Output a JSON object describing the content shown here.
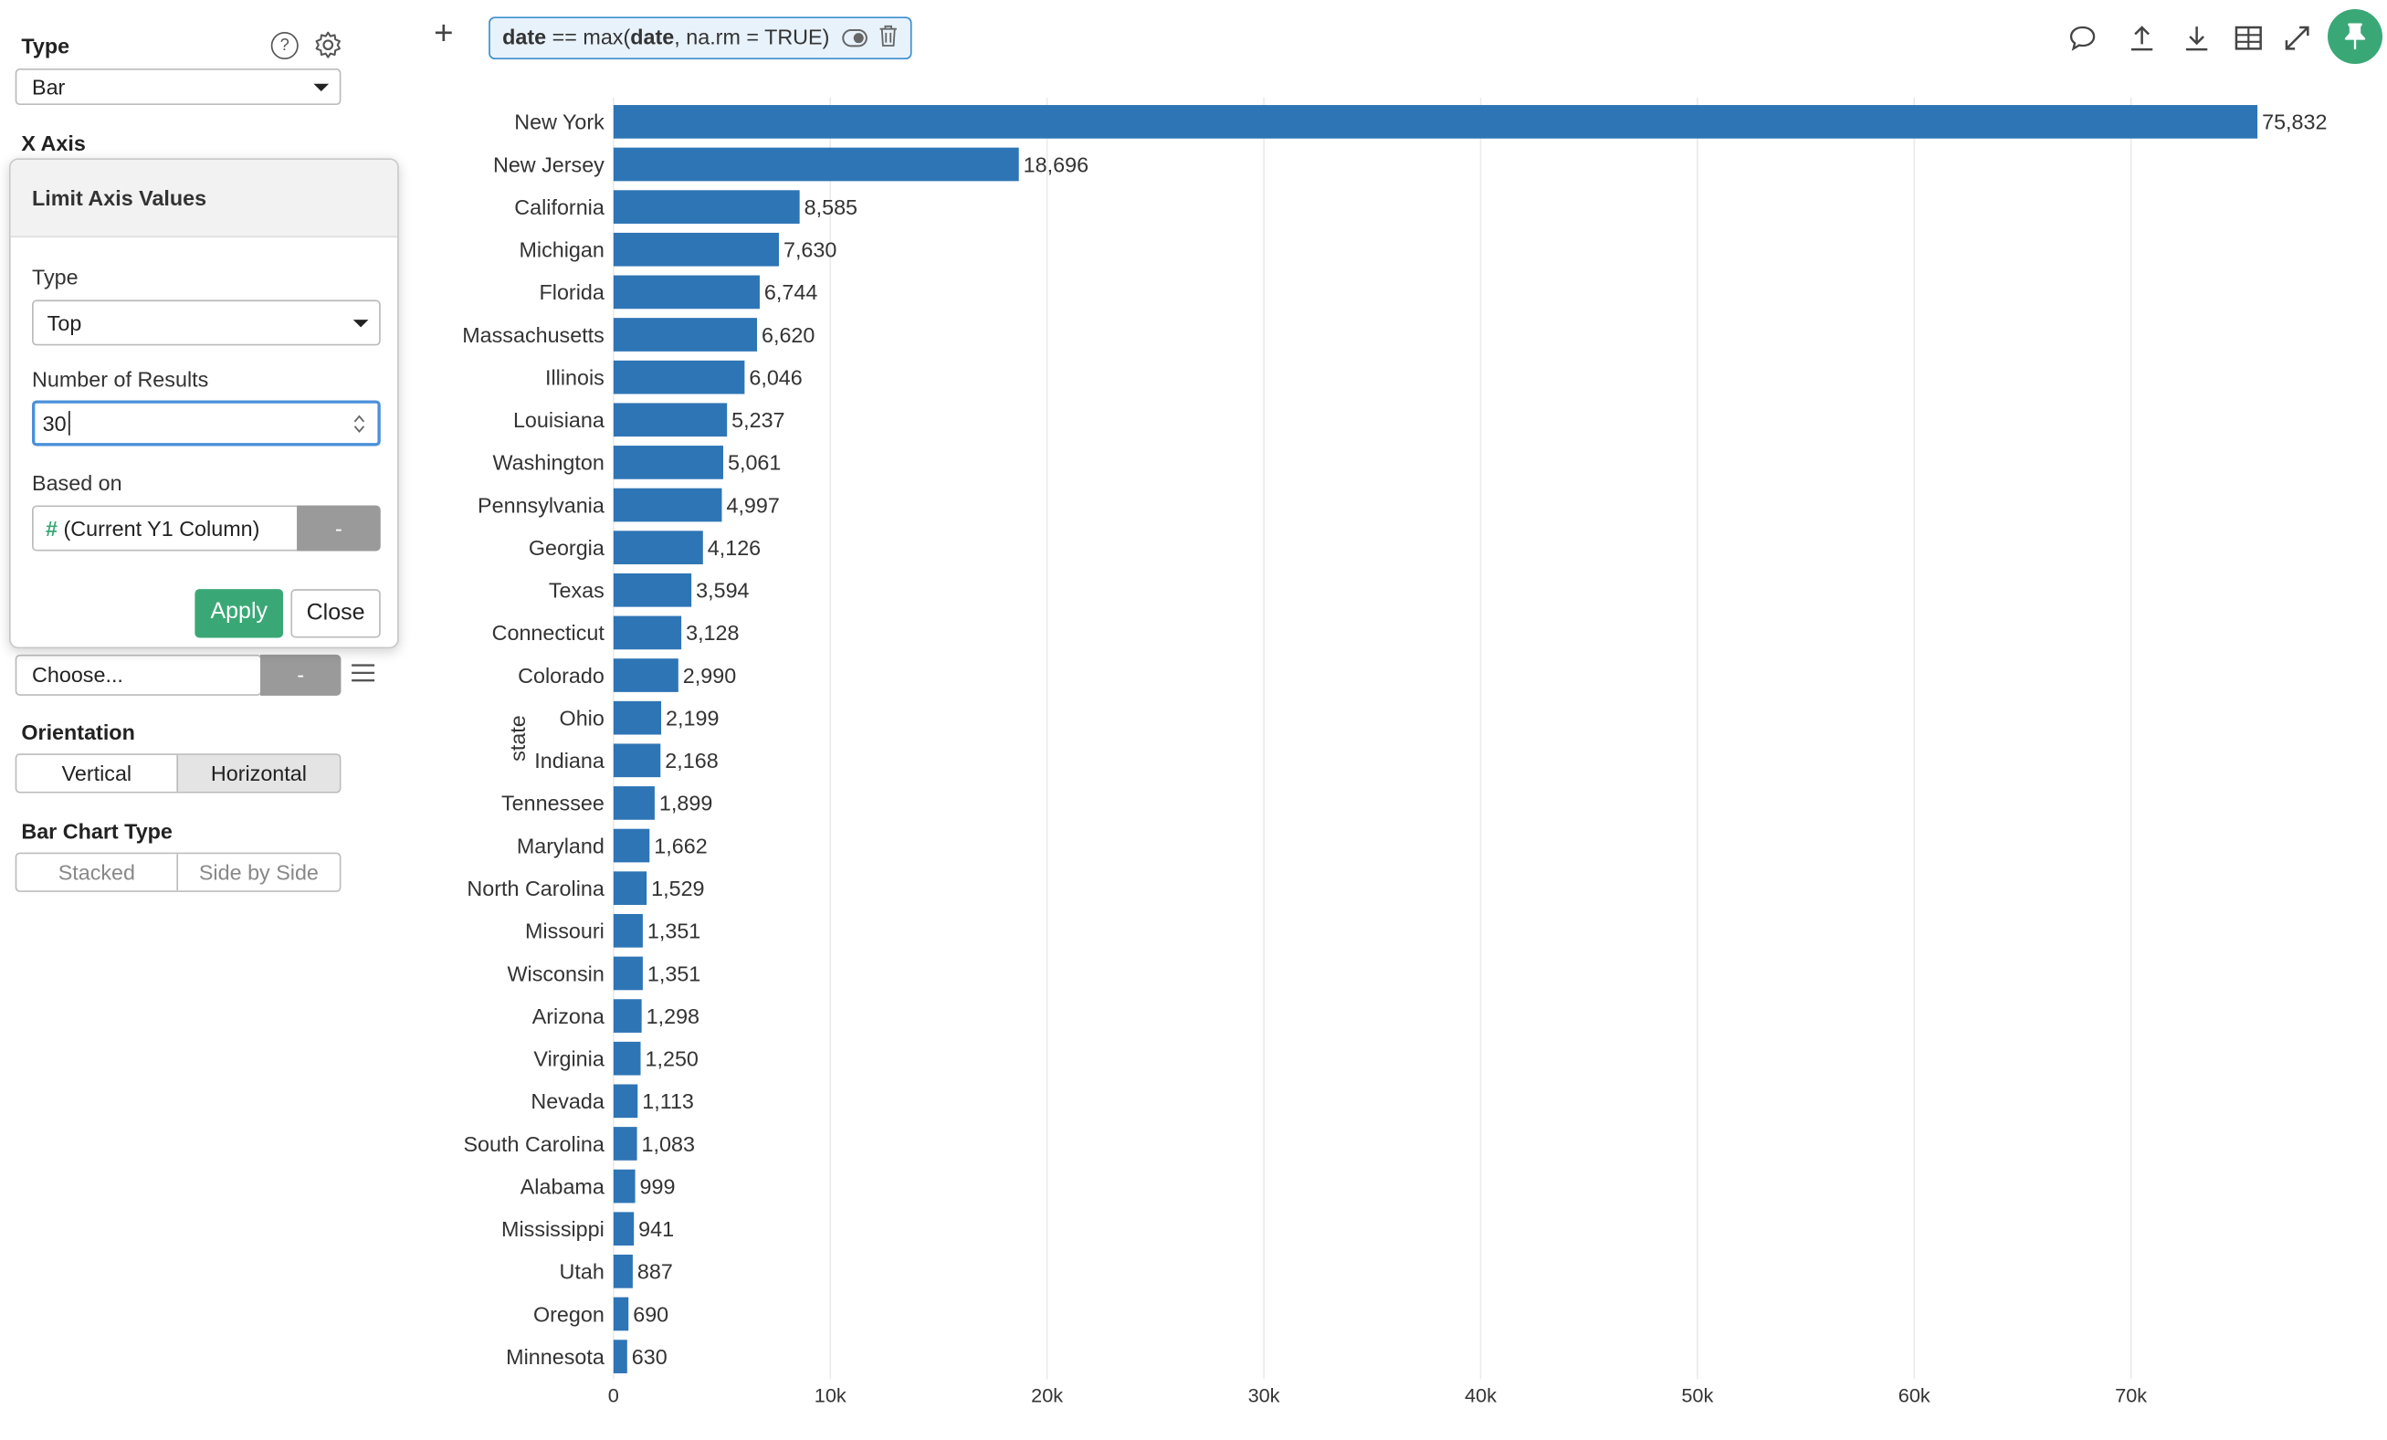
{
  "sidebar": {
    "type_label": "Type",
    "type_value": "Bar",
    "x_axis_label": "X Axis",
    "choose_placeholder": "Choose...",
    "choose_dash": "-",
    "orientation_label": "Orientation",
    "orientation_options": [
      "Vertical",
      "Horizontal"
    ],
    "orientation_selected": "Horizontal",
    "bar_chart_type_label": "Bar Chart Type",
    "bar_chart_type_options": [
      "Stacked",
      "Side by Side"
    ]
  },
  "popover": {
    "title": "Limit Axis Values",
    "type_label": "Type",
    "type_value": "Top",
    "number_label": "Number of Results",
    "number_value": "30",
    "based_on_label": "Based on",
    "based_on_hash": "#",
    "based_on_value": "(Current Y1 Column)",
    "based_on_dash": "-",
    "apply": "Apply",
    "close": "Close"
  },
  "filter": {
    "col": "date",
    "op": " == max(",
    "arg": "date",
    "rest": ", na.rm = TRUE)"
  },
  "toolbar": {
    "add": "+",
    "icons": [
      "comment-icon",
      "upload-icon",
      "download-icon",
      "table-icon",
      "expand-icon",
      "pin-icon"
    ]
  },
  "colors": {
    "bar": "#2e75b5",
    "apply": "#3aa876",
    "pin": "#3aa876",
    "filter_border": "#3b8fd0"
  },
  "chart_data": {
    "type": "bar",
    "orientation": "horizontal",
    "ylabel": "state",
    "xlim": [
      0,
      79000
    ],
    "x_ticks": [
      0,
      10000,
      20000,
      30000,
      40000,
      50000,
      60000,
      70000
    ],
    "x_tick_labels": [
      "0",
      "10k",
      "20k",
      "30k",
      "40k",
      "50k",
      "60k",
      "70k"
    ],
    "grid": true,
    "categories": [
      "New York",
      "New Jersey",
      "California",
      "Michigan",
      "Florida",
      "Massachusetts",
      "Illinois",
      "Louisiana",
      "Washington",
      "Pennsylvania",
      "Georgia",
      "Texas",
      "Connecticut",
      "Colorado",
      "Ohio",
      "Indiana",
      "Tennessee",
      "Maryland",
      "North Carolina",
      "Missouri",
      "Wisconsin",
      "Arizona",
      "Virginia",
      "Nevada",
      "South Carolina",
      "Alabama",
      "Mississippi",
      "Utah",
      "Oregon",
      "Minnesota"
    ],
    "values": [
      75832,
      18696,
      8585,
      7630,
      6744,
      6620,
      6046,
      5237,
      5061,
      4997,
      4126,
      3594,
      3128,
      2990,
      2199,
      2168,
      1899,
      1662,
      1529,
      1351,
      1351,
      1298,
      1250,
      1113,
      1083,
      999,
      941,
      887,
      690,
      630
    ],
    "value_labels": [
      "75,832",
      "18,696",
      "8,585",
      "7,630",
      "6,744",
      "6,620",
      "6,046",
      "5,237",
      "5,061",
      "4,997",
      "4,126",
      "3,594",
      "3,128",
      "2,990",
      "2,199",
      "2,168",
      "1,899",
      "1,662",
      "1,529",
      "1,351",
      "1,351",
      "1,298",
      "1,250",
      "1,113",
      "1,083",
      "999",
      "941",
      "887",
      "690",
      "630"
    ]
  }
}
